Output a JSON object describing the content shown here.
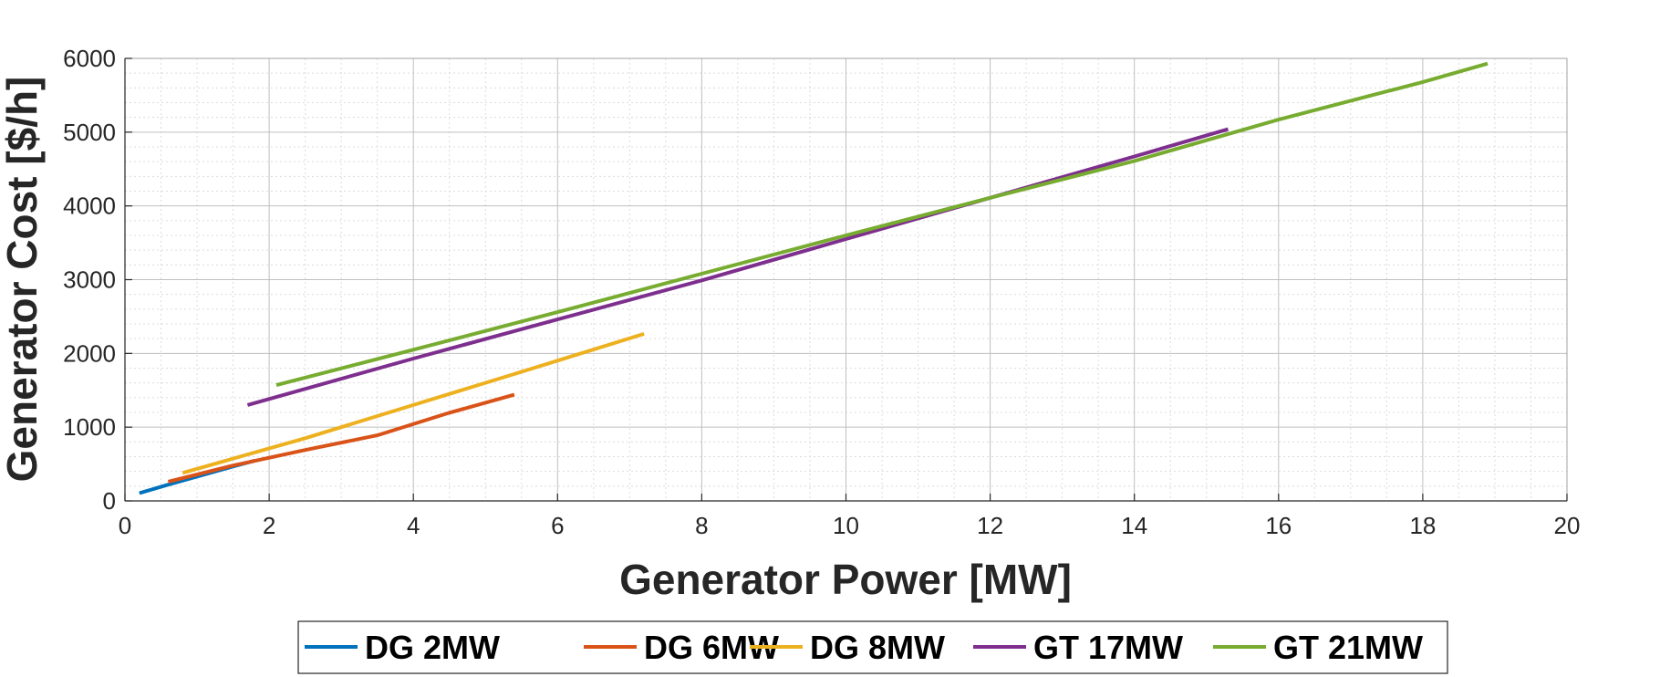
{
  "chart_data": {
    "type": "line",
    "xlabel": "Generator Power [MW]",
    "ylabel": "Generator Cost [$/h]",
    "xlim": [
      0,
      20
    ],
    "ylim": [
      0,
      6000
    ],
    "xticks": [
      0,
      2,
      4,
      6,
      8,
      10,
      12,
      14,
      16,
      18,
      20
    ],
    "yticks": [
      0,
      1000,
      2000,
      3000,
      4000,
      5000,
      6000
    ],
    "grid": true,
    "minor_grid": true,
    "legend_position": "bottom",
    "series": [
      {
        "name": "DG 2MW",
        "color": "#0072BD",
        "x": [
          0.2,
          0.6,
          1.0,
          1.4,
          1.8
        ],
        "y": [
          105,
          220,
          330,
          440,
          545
        ]
      },
      {
        "name": "DG 6MW",
        "color": "#D95319",
        "x": [
          0.6,
          1.5,
          2.5,
          3.5,
          4.5,
          5.4
        ],
        "y": [
          260,
          480,
          690,
          890,
          1195,
          1440
        ]
      },
      {
        "name": "DG 8MW",
        "color": "#EDB120",
        "x": [
          0.8,
          2.5,
          4.0,
          5.5,
          7.2
        ],
        "y": [
          380,
          850,
          1300,
          1750,
          2265
        ]
      },
      {
        "name": "GT 17MW",
        "color": "#7E2F8E",
        "x": [
          1.7,
          4.0,
          6.0,
          8.0,
          10.0,
          12.0,
          14.0,
          15.3
        ],
        "y": [
          1300,
          1930,
          2460,
          2990,
          3550,
          4110,
          4670,
          5040
        ]
      },
      {
        "name": "GT 21MW",
        "color": "#77AC30",
        "x": [
          2.1,
          4.0,
          6.0,
          8.0,
          10.0,
          12.0,
          14.0,
          16.0,
          18.0,
          18.9
        ],
        "y": [
          1570,
          2050,
          2560,
          3080,
          3600,
          4110,
          4610,
          5170,
          5680,
          5930
        ]
      }
    ]
  }
}
